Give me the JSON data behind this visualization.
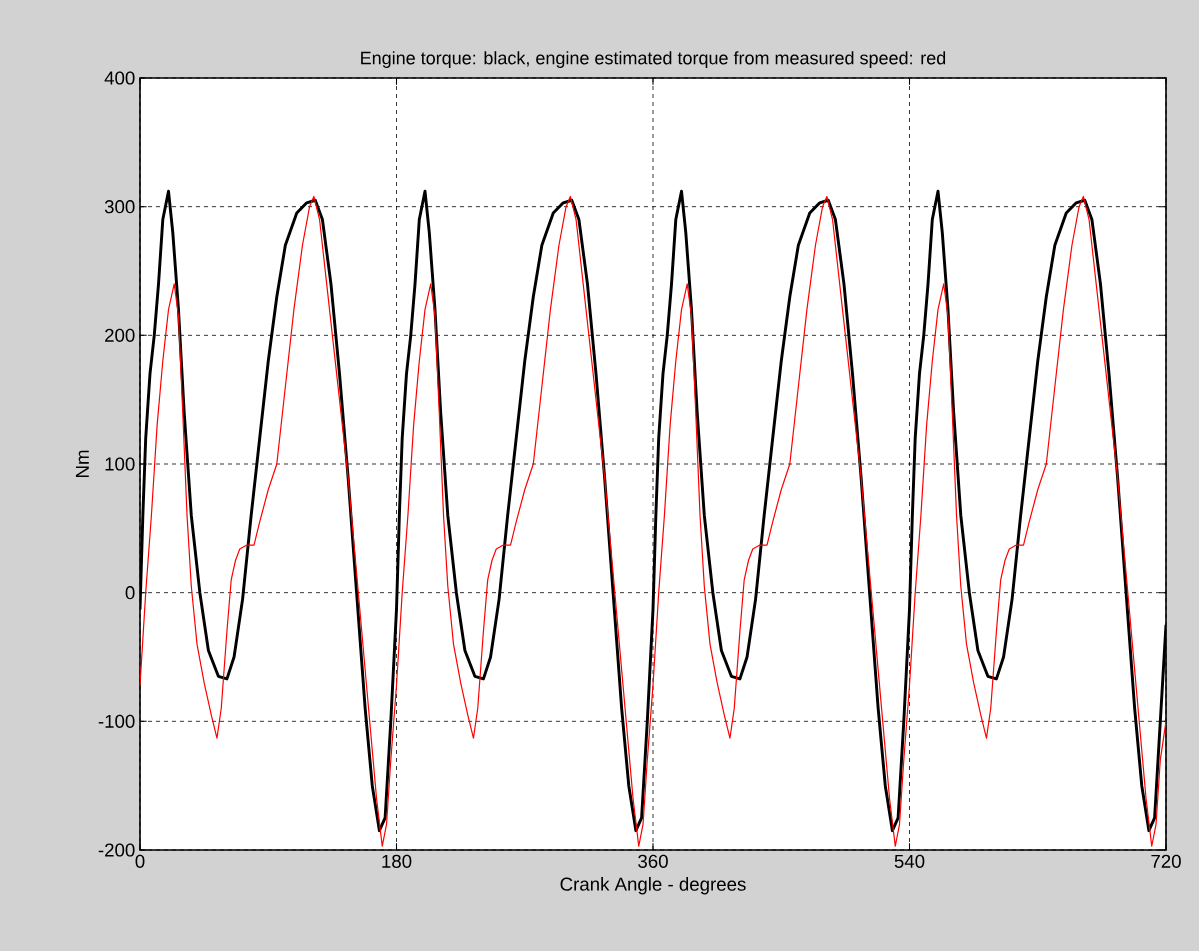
{
  "chart_data": {
    "type": "line",
    "title": "Engine torque: black, engine estimated torque from measured speed: red",
    "xlabel": "Crank Angle - degrees",
    "ylabel": "Nm",
    "xlim": [
      0,
      720
    ],
    "ylim": [
      -200,
      400
    ],
    "xticks": [
      0,
      180,
      360,
      540,
      720
    ],
    "yticks": [
      -200,
      -100,
      0,
      100,
      200,
      300,
      400
    ],
    "grid": true,
    "series": [
      {
        "color": "#000000",
        "x": [
          0,
          2,
          4,
          7,
          10,
          13,
          16,
          20,
          23,
          27,
          31,
          36,
          42,
          48,
          55,
          61,
          66,
          72,
          78,
          84,
          90,
          96,
          102,
          110,
          117,
          123,
          128,
          134,
          140,
          146,
          152,
          158,
          163,
          168,
          172,
          176,
          180,
          182,
          184,
          187,
          190,
          193,
          196,
          200,
          203,
          207,
          211,
          216,
          222,
          228,
          235,
          241,
          246,
          252,
          258,
          264,
          270,
          276,
          282,
          290,
          297,
          303,
          308,
          314,
          320,
          326,
          332,
          338,
          343,
          348,
          352,
          356,
          360,
          362,
          364,
          367,
          370,
          373,
          376,
          380,
          383,
          387,
          391,
          396,
          402,
          408,
          415,
          421,
          426,
          432,
          438,
          444,
          450,
          456,
          462,
          470,
          477,
          483,
          488,
          494,
          500,
          506,
          512,
          518,
          523,
          528,
          532,
          536,
          540,
          542,
          544,
          547,
          550,
          553,
          556,
          560,
          563,
          567,
          571,
          576,
          582,
          588,
          595,
          601,
          606,
          612,
          618,
          624,
          630,
          636,
          642,
          650,
          657,
          663,
          668,
          674,
          680,
          686,
          692,
          698,
          703,
          708,
          712,
          716,
          720
        ],
        "values": [
          -13,
          60,
          120,
          170,
          200,
          240,
          290,
          312,
          280,
          220,
          140,
          60,
          0,
          -45,
          -65,
          -67,
          -50,
          -5,
          60,
          120,
          180,
          230,
          270,
          295,
          303,
          305,
          290,
          240,
          170,
          90,
          0,
          -90,
          -150,
          -185,
          -175,
          -100,
          -13,
          60,
          120,
          170,
          200,
          240,
          290,
          312,
          280,
          220,
          140,
          60,
          0,
          -45,
          -65,
          -67,
          -50,
          -5,
          60,
          120,
          180,
          230,
          270,
          295,
          303,
          305,
          290,
          240,
          170,
          90,
          0,
          -90,
          -150,
          -185,
          -175,
          -100,
          -13,
          60,
          120,
          170,
          200,
          240,
          290,
          312,
          280,
          220,
          140,
          60,
          0,
          -45,
          -65,
          -67,
          -50,
          -5,
          60,
          120,
          180,
          230,
          270,
          295,
          303,
          305,
          290,
          240,
          170,
          90,
          0,
          -90,
          -150,
          -185,
          -175,
          -100,
          -13,
          60,
          120,
          170,
          200,
          240,
          290,
          312,
          280,
          220,
          140,
          60,
          0,
          -45,
          -65,
          -67,
          -50,
          -5,
          60,
          120,
          180,
          230,
          270,
          295,
          303,
          305,
          290,
          240,
          170,
          90,
          0,
          -90,
          -150,
          -185,
          -175,
          -100,
          -25
        ]
      },
      {
        "color": "#ff0000",
        "x": [
          0,
          4,
          8,
          12,
          16,
          20,
          24,
          27,
          30,
          33,
          36,
          40,
          45,
          50,
          54,
          57,
          61,
          64,
          67,
          70,
          75,
          80,
          84,
          90,
          96,
          102,
          108,
          114,
          119,
          122,
          126,
          131,
          136,
          141,
          146,
          150,
          154,
          158,
          162,
          166,
          170,
          173,
          176,
          180,
          184,
          188,
          192,
          196,
          200,
          204,
          207,
          210,
          213,
          216,
          220,
          225,
          230,
          234,
          237,
          241,
          244,
          247,
          250,
          255,
          260,
          264,
          270,
          276,
          282,
          288,
          294,
          299,
          302,
          306,
          311,
          316,
          321,
          326,
          330,
          334,
          338,
          342,
          346,
          350,
          353,
          356,
          360,
          364,
          368,
          372,
          376,
          380,
          384,
          387,
          390,
          393,
          396,
          400,
          405,
          410,
          414,
          417,
          421,
          424,
          427,
          430,
          435,
          440,
          444,
          450,
          456,
          462,
          468,
          474,
          479,
          482,
          486,
          491,
          496,
          501,
          506,
          510,
          514,
          518,
          522,
          526,
          530,
          533,
          536,
          540,
          544,
          548,
          552,
          556,
          560,
          564,
          567,
          570,
          573,
          576,
          580,
          585,
          590,
          594,
          597,
          601,
          604,
          607,
          610,
          615,
          620,
          624,
          630,
          636,
          642,
          648,
          654,
          659,
          662,
          666,
          671,
          676,
          681,
          686,
          690,
          694,
          698,
          702,
          706,
          710,
          713,
          716,
          720
        ],
        "values": [
          -72,
          0,
          60,
          130,
          180,
          220,
          240,
          215,
          140,
          60,
          5,
          -40,
          -70,
          -95,
          -113,
          -90,
          -30,
          10,
          25,
          34,
          37,
          37,
          55,
          80,
          100,
          160,
          220,
          270,
          300,
          308,
          290,
          240,
          190,
          140,
          90,
          40,
          -10,
          -60,
          -110,
          -160,
          -197,
          -180,
          -130,
          -72,
          0,
          60,
          130,
          180,
          220,
          240,
          215,
          140,
          60,
          5,
          -40,
          -70,
          -95,
          -113,
          -90,
          -30,
          10,
          25,
          34,
          37,
          37,
          55,
          80,
          100,
          160,
          220,
          270,
          300,
          308,
          290,
          240,
          190,
          140,
          90,
          40,
          -10,
          -60,
          -110,
          -160,
          -197,
          -180,
          -130,
          -72,
          0,
          60,
          130,
          180,
          220,
          240,
          215,
          140,
          60,
          5,
          -40,
          -70,
          -95,
          -113,
          -90,
          -30,
          10,
          25,
          34,
          37,
          37,
          55,
          80,
          100,
          160,
          220,
          270,
          300,
          308,
          290,
          240,
          190,
          140,
          90,
          40,
          -10,
          -60,
          -110,
          -160,
          -197,
          -180,
          -130,
          -72,
          0,
          60,
          130,
          180,
          220,
          240,
          215,
          140,
          60,
          5,
          -40,
          -70,
          -95,
          -113,
          -90,
          -30,
          10,
          25,
          34,
          37,
          37,
          55,
          80,
          100,
          160,
          220,
          270,
          300,
          308,
          290,
          240,
          190,
          140,
          90,
          40,
          -10,
          -60,
          -110,
          -160,
          -197,
          -180,
          -130,
          -100
        ]
      }
    ]
  }
}
